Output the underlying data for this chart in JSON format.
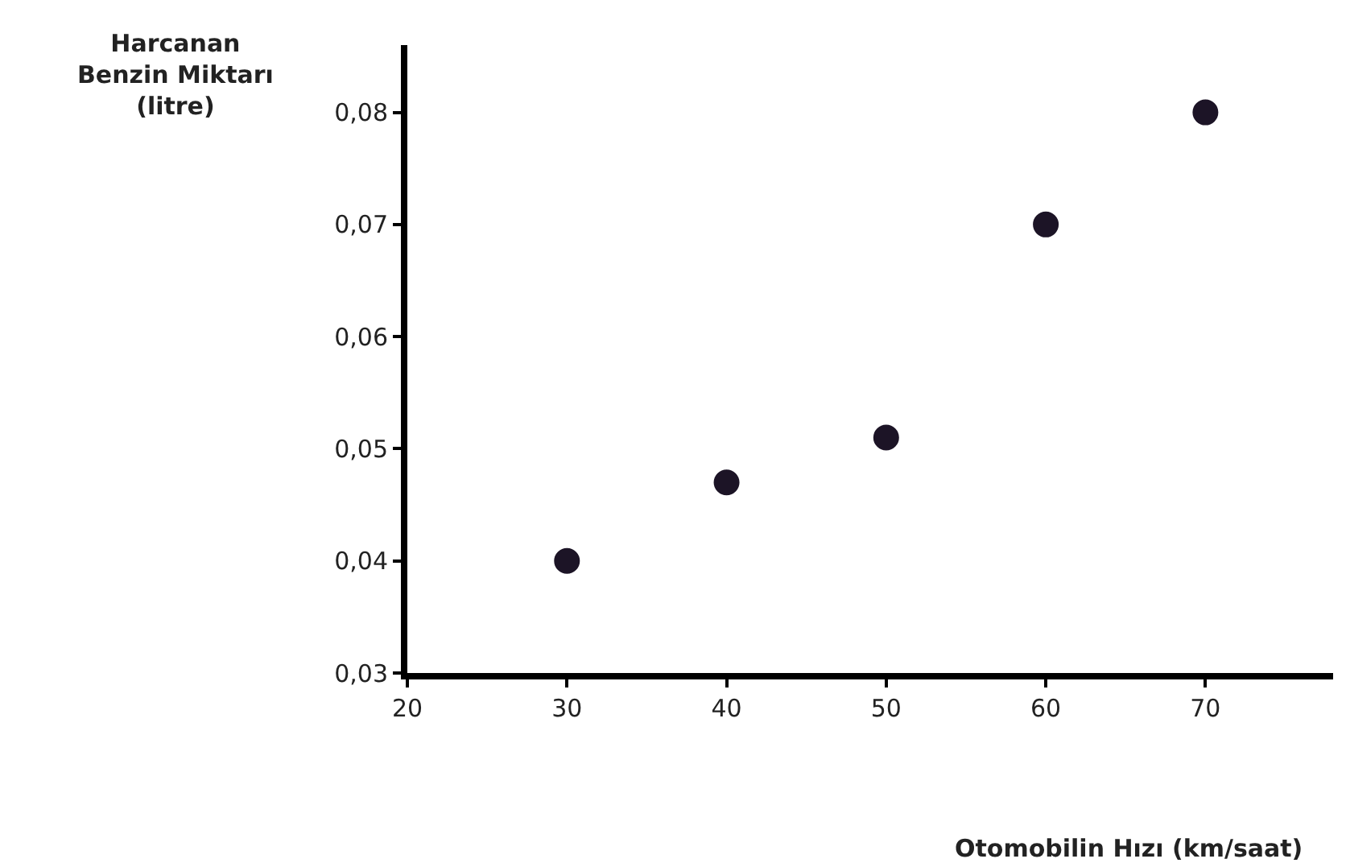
{
  "chart_data": {
    "type": "scatter",
    "xlabel": "Otomobilin Hızı (km/saat)",
    "ylabel": "Harcanan\nBenzin Miktarı\n(litre)",
    "x": [
      30,
      40,
      50,
      60,
      70
    ],
    "series": [
      {
        "color": "#1c1426",
        "values": [
          0.04,
          0.047,
          0.051,
          0.07,
          0.08
        ]
      }
    ],
    "xlim": [
      20,
      78
    ],
    "xticks": [
      20,
      30,
      40,
      50,
      60,
      70
    ],
    "ylim": [
      0.03,
      0.086
    ],
    "yticks": [
      {
        "value": 0.03,
        "label": "0,03"
      },
      {
        "value": 0.04,
        "label": "0,04"
      },
      {
        "value": 0.05,
        "label": "0,05"
      },
      {
        "value": 0.06,
        "label": "0,06"
      },
      {
        "value": 0.07,
        "label": "0,07"
      },
      {
        "value": 0.08,
        "label": "0,08"
      }
    ],
    "marker": "circle"
  }
}
